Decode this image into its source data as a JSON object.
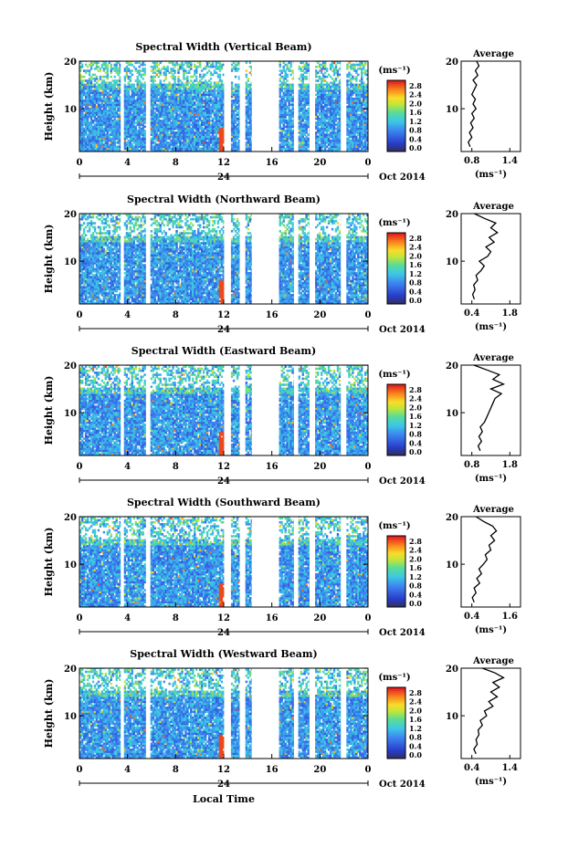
{
  "figure": {
    "xlabel": "Local Time",
    "date_label": "Oct 2014"
  },
  "chart_data": [
    {
      "type": "heatmap",
      "title": "Spectral Width (Vertical Beam)",
      "ylabel": "Height (km)",
      "xlabel": "Local Time",
      "y_ticks": [
        10,
        20
      ],
      "ylim": [
        1,
        20
      ],
      "x_ticks": [
        "0",
        "4",
        "8",
        "12",
        "16",
        "20",
        "0"
      ],
      "x_day_marker": "24",
      "xlim": [
        0,
        24
      ],
      "date_label": "Oct 2014",
      "colorbar": {
        "unit": "(ms⁻¹)",
        "ticks": [
          "0.0",
          "0.4",
          "0.8",
          "1.2",
          "1.6",
          "2.0",
          "2.4",
          "2.8"
        ]
      },
      "average_profile": {
        "title": "Average",
        "xlabel": "(ms⁻¹)",
        "xticks": [
          "0.8",
          "1.4"
        ],
        "xlim": [
          0.6,
          1.6
        ],
        "yticks": [
          10,
          20
        ],
        "y": [
          2,
          3,
          4,
          5,
          6,
          7,
          8,
          9,
          10,
          11,
          12,
          13,
          14,
          15,
          16,
          17,
          18,
          19,
          20
        ],
        "x": [
          0.75,
          0.72,
          0.78,
          0.74,
          0.8,
          0.76,
          0.82,
          0.78,
          0.85,
          0.8,
          0.84,
          0.78,
          0.82,
          0.86,
          0.8,
          0.88,
          0.84,
          0.9,
          0.86
        ]
      }
    },
    {
      "type": "heatmap",
      "title": "Spectral Width (Northward Beam)",
      "ylabel": "Height (km)",
      "xlabel": "Local Time",
      "y_ticks": [
        10,
        20
      ],
      "ylim": [
        1,
        20
      ],
      "x_ticks": [
        "0",
        "4",
        "8",
        "12",
        "16",
        "20",
        "0"
      ],
      "x_day_marker": "24",
      "xlim": [
        0,
        24
      ],
      "date_label": "Oct 2014",
      "colorbar": {
        "unit": "(ms⁻¹)",
        "ticks": [
          "0.0",
          "0.4",
          "0.8",
          "1.2",
          "1.6",
          "2.0",
          "2.4",
          "2.8"
        ]
      },
      "average_profile": {
        "title": "Average",
        "xlabel": "(ms⁻¹)",
        "xticks": [
          "0.4",
          "1.8"
        ],
        "xlim": [
          0.2,
          2.0
        ],
        "yticks": [
          10,
          20
        ],
        "y": [
          2,
          3,
          4,
          5,
          6,
          7,
          8,
          9,
          10,
          11,
          12,
          13,
          14,
          15,
          16,
          17,
          18,
          19,
          20
        ],
        "x": [
          0.6,
          0.55,
          0.62,
          0.58,
          0.7,
          0.65,
          0.8,
          0.9,
          0.75,
          1.0,
          1.1,
          0.95,
          1.2,
          1.05,
          1.3,
          1.1,
          1.25,
          0.9,
          0.6
        ]
      }
    },
    {
      "type": "heatmap",
      "title": "Spectral Width (Eastward Beam)",
      "ylabel": "Height (km)",
      "xlabel": "Local Time",
      "y_ticks": [
        10,
        20
      ],
      "ylim": [
        1,
        20
      ],
      "x_ticks": [
        "0",
        "4",
        "8",
        "12",
        "16",
        "20",
        "0"
      ],
      "x_day_marker": "24",
      "xlim": [
        0,
        24
      ],
      "date_label": "Oct 2014",
      "colorbar": {
        "unit": "(ms⁻¹)",
        "ticks": [
          "0.0",
          "0.4",
          "0.8",
          "1.2",
          "1.6",
          "2.0",
          "2.4",
          "2.8"
        ]
      },
      "average_profile": {
        "title": "Average",
        "xlabel": "(ms⁻¹)",
        "xticks": [
          "0.8",
          "1.8"
        ],
        "xlim": [
          0.6,
          2.0
        ],
        "yticks": [
          10,
          20
        ],
        "y": [
          2,
          3,
          4,
          5,
          6,
          7,
          8,
          9,
          10,
          11,
          12,
          13,
          14,
          15,
          16,
          17,
          18,
          19,
          20
        ],
        "x": [
          1.05,
          1.0,
          1.08,
          1.02,
          1.1,
          1.05,
          1.15,
          1.2,
          1.25,
          1.3,
          1.35,
          1.4,
          1.55,
          1.3,
          1.6,
          1.35,
          1.5,
          1.2,
          0.9
        ]
      }
    },
    {
      "type": "heatmap",
      "title": "Spectral Width (Southward Beam)",
      "ylabel": "Height (km)",
      "xlabel": "Local Time",
      "y_ticks": [
        10,
        20
      ],
      "ylim": [
        1,
        20
      ],
      "x_ticks": [
        "0",
        "4",
        "8",
        "12",
        "16",
        "20",
        "0"
      ],
      "x_day_marker": "24",
      "xlim": [
        0,
        24
      ],
      "date_label": "Oct 2014",
      "colorbar": {
        "unit": "(ms⁻¹)",
        "ticks": [
          "0.0",
          "0.4",
          "0.8",
          "1.2",
          "1.6",
          "2.0",
          "2.4",
          "2.8"
        ]
      },
      "average_profile": {
        "title": "Average",
        "xlabel": "(ms⁻¹)",
        "xticks": [
          "0.4",
          "1.6"
        ],
        "xlim": [
          0.2,
          1.8
        ],
        "yticks": [
          10,
          20
        ],
        "y": [
          2,
          3,
          4,
          5,
          6,
          7,
          8,
          9,
          10,
          11,
          12,
          13,
          14,
          15,
          16,
          17,
          18,
          19,
          20
        ],
        "x": [
          0.55,
          0.5,
          0.6,
          0.55,
          0.7,
          0.62,
          0.75,
          0.68,
          0.8,
          0.9,
          0.85,
          1.0,
          0.95,
          1.1,
          1.0,
          1.15,
          1.05,
          0.8,
          0.6
        ]
      }
    },
    {
      "type": "heatmap",
      "title": "Spectral Width (Westward Beam)",
      "ylabel": "Height (km)",
      "xlabel": "Local Time",
      "y_ticks": [
        10,
        20
      ],
      "ylim": [
        1,
        20
      ],
      "x_ticks": [
        "0",
        "4",
        "8",
        "12",
        "16",
        "20",
        "0"
      ],
      "x_day_marker": "24",
      "xlim": [
        0,
        24
      ],
      "date_label": "Oct 2014",
      "colorbar": {
        "unit": "(ms⁻¹)",
        "ticks": [
          "0.0",
          "0.4",
          "0.8",
          "1.2",
          "1.6",
          "2.0",
          "2.4",
          "2.8"
        ]
      },
      "average_profile": {
        "title": "Average",
        "xlabel": "(ms⁻¹)",
        "xticks": [
          "0.4",
          "1.4"
        ],
        "xlim": [
          0.2,
          1.6
        ],
        "yticks": [
          10,
          20
        ],
        "y": [
          2,
          3,
          4,
          5,
          6,
          7,
          8,
          9,
          10,
          11,
          12,
          13,
          14,
          15,
          16,
          17,
          18,
          19,
          20
        ],
        "x": [
          0.55,
          0.5,
          0.58,
          0.55,
          0.62,
          0.6,
          0.7,
          0.65,
          0.8,
          0.75,
          0.95,
          0.85,
          1.05,
          0.9,
          1.1,
          0.95,
          1.2,
          1.0,
          0.7
        ]
      }
    }
  ]
}
